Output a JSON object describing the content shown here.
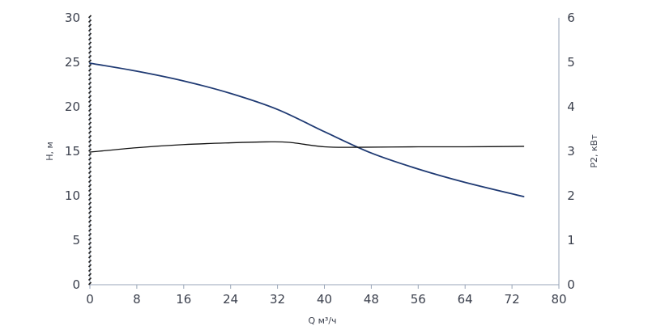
{
  "chart_data": {
    "type": "line",
    "title": "",
    "xlabel": "Q м³/ч",
    "ylabel_left": "H, м",
    "ylabel_right": "P2, кВт",
    "xlim": [
      0,
      80
    ],
    "ylim_left": [
      0,
      30
    ],
    "ylim_right": [
      0,
      6
    ],
    "x_ticks": [
      0,
      8,
      16,
      24,
      32,
      40,
      48,
      56,
      64,
      72,
      80
    ],
    "y_left_ticks": [
      0,
      5,
      10,
      15,
      20,
      25,
      30
    ],
    "y_right_ticks": [
      0,
      1,
      2,
      3,
      4,
      5,
      6
    ],
    "grid": false,
    "series": [
      {
        "axis": "left",
        "color": "#1f3a73",
        "x": [
          0,
          8,
          16,
          24,
          32,
          40,
          48,
          56,
          64,
          74
        ],
        "y": [
          24.9,
          24.0,
          22.9,
          21.5,
          19.7,
          17.2,
          14.8,
          13.0,
          11.5,
          9.9
        ]
      },
      {
        "axis": "right",
        "color": "#111111",
        "x": [
          0,
          8,
          16,
          24,
          30,
          34,
          40,
          46,
          56,
          64,
          74
        ],
        "y": [
          2.98,
          3.08,
          3.15,
          3.19,
          3.21,
          3.2,
          3.1,
          3.09,
          3.1,
          3.1,
          3.11
        ]
      }
    ]
  },
  "colors": {
    "axis": "#9aa6b8",
    "tick_text": "#3a3f4c",
    "left_axis_marks": "#222222"
  }
}
